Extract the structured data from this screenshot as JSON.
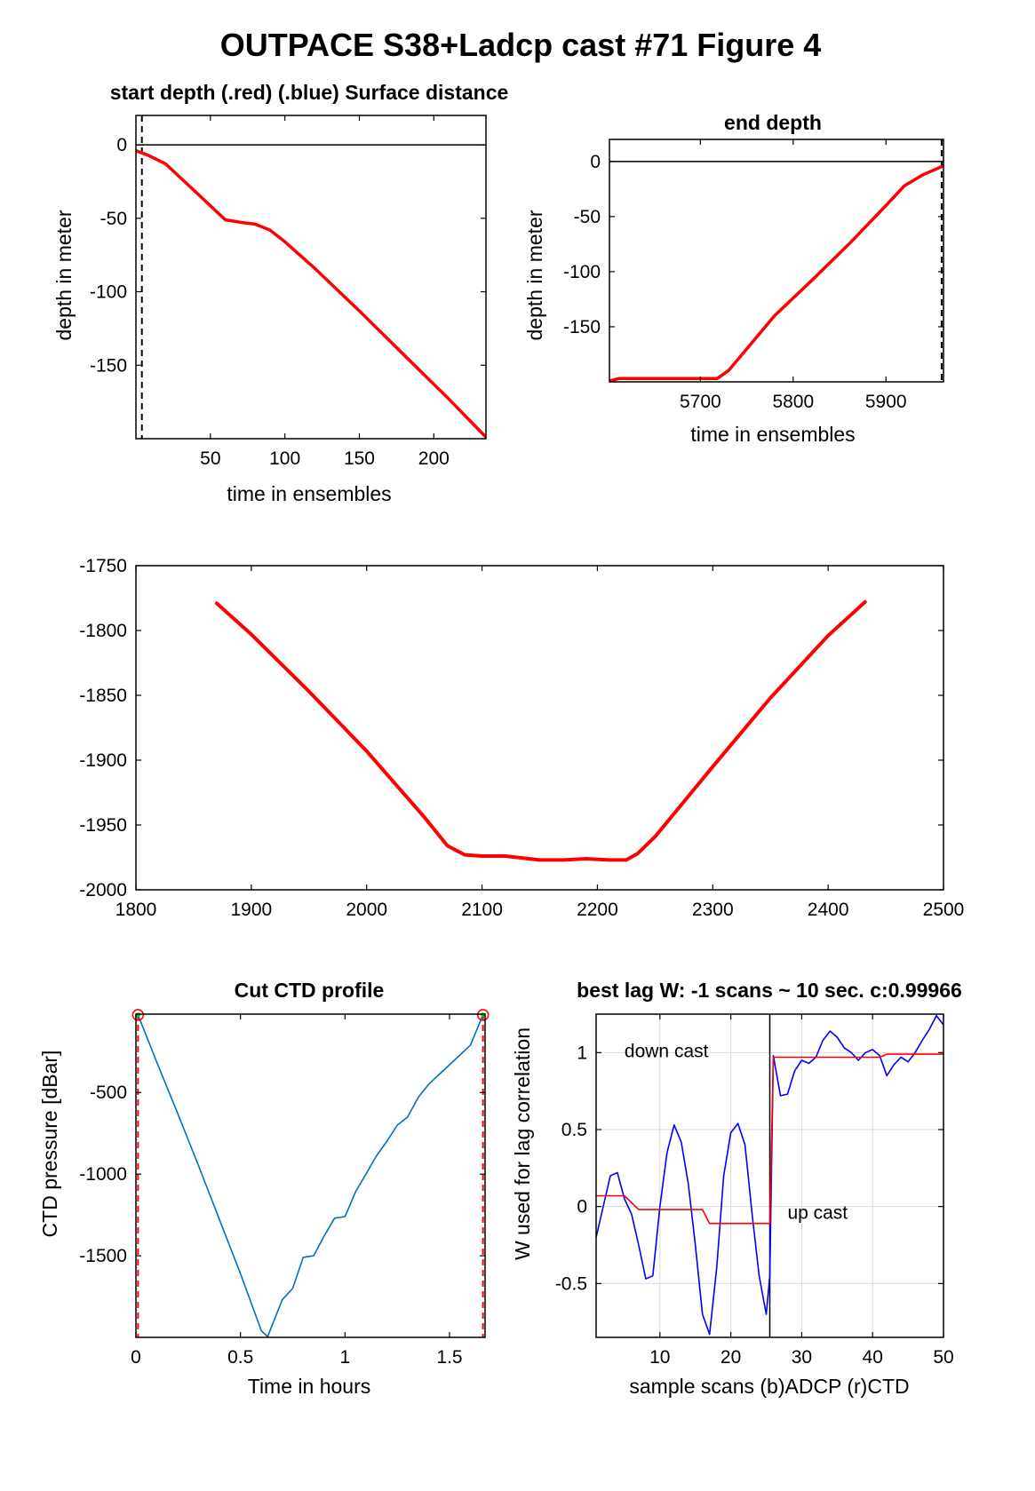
{
  "figure_title": "OUTPACE S38+Ladcp cast #71   Figure 4",
  "colors": {
    "red": "#ff0000",
    "blue": "#0000ff",
    "ctd": "#0072bd",
    "green": "#00cc00",
    "axis": "#000000",
    "grid": "#d9d9d9"
  },
  "chart_data": [
    {
      "type": "line",
      "title": "start depth (.red) (.blue) Surface distance",
      "xlabel": "time in ensembles",
      "ylabel": "depth in meter",
      "xlim": [
        0,
        235
      ],
      "ylim": [
        -200,
        20
      ],
      "xticks": [
        50,
        100,
        150,
        200
      ],
      "yticks": [
        0,
        -50,
        -100,
        -150
      ],
      "reference_line_y": 0,
      "dashed_vline_x": 4,
      "series": [
        {
          "color": "red",
          "x": [
            0,
            8,
            20,
            40,
            60,
            72,
            80,
            90,
            100,
            120,
            150,
            180,
            210,
            235
          ],
          "y": [
            -4,
            -7,
            -13,
            -32,
            -51,
            -53,
            -54,
            -58,
            -66,
            -84,
            -113,
            -143,
            -173,
            -199
          ]
        }
      ]
    },
    {
      "type": "line",
      "title": "end depth",
      "xlabel": "time in ensembles",
      "ylabel": "depth in meter",
      "xlim": [
        5602,
        5962
      ],
      "ylim": [
        -200,
        20
      ],
      "xticks": [
        5700,
        5800,
        5900
      ],
      "yticks": [
        0,
        -50,
        -100,
        -150
      ],
      "reference_line_y": 0,
      "dashed_vline_x": 5960,
      "series": [
        {
          "color": "red",
          "x": [
            5603,
            5612,
            5660,
            5700,
            5718,
            5730,
            5745,
            5780,
            5820,
            5860,
            5900,
            5920,
            5940,
            5962
          ],
          "y": [
            -199,
            -197,
            -197,
            -197,
            -197,
            -190,
            -175,
            -140,
            -108,
            -75,
            -40,
            -22,
            -12,
            -4
          ]
        }
      ]
    },
    {
      "type": "line",
      "title": "",
      "xlabel": "",
      "ylabel": "",
      "xlim": [
        1800,
        2500
      ],
      "ylim": [
        -2000,
        -1750
      ],
      "xticks": [
        1800,
        1900,
        2000,
        2100,
        2200,
        2300,
        2400,
        2500
      ],
      "yticks": [
        -1750,
        -1800,
        -1850,
        -1900,
        -1950,
        -2000
      ],
      "series": [
        {
          "color": "red",
          "x": [
            1870,
            1900,
            1950,
            2000,
            2050,
            2070,
            2085,
            2100,
            2120,
            2150,
            2170,
            2190,
            2210,
            2225,
            2235,
            2250,
            2300,
            2350,
            2400,
            2432
          ],
          "y": [
            -1779,
            -1803,
            -1847,
            -1893,
            -1944,
            -1966,
            -1973,
            -1974,
            -1974,
            -1977,
            -1977,
            -1976,
            -1977,
            -1977,
            -1972,
            -1959,
            -1905,
            -1852,
            -1804,
            -1778
          ]
        }
      ]
    },
    {
      "type": "line",
      "title": "Cut CTD profile",
      "xlabel": "Time in hours",
      "ylabel": "CTD pressure [dBar]",
      "xlim": [
        0,
        1.67
      ],
      "ylim": [
        -2000,
        -20
      ],
      "xticks": [
        0,
        0.5,
        1,
        1.5
      ],
      "yticks": [
        -500,
        -1000,
        -1500
      ],
      "dashed_vlines_x": [
        0.01,
        1.66
      ],
      "endpoints": [
        [
          0.01,
          -25
        ],
        [
          1.66,
          -25
        ]
      ],
      "series": [
        {
          "color": "ctd",
          "x": [
            0.01,
            0.1,
            0.2,
            0.3,
            0.4,
            0.5,
            0.6,
            0.63,
            0.7,
            0.75,
            0.8,
            0.85,
            0.9,
            0.95,
            1.0,
            1.05,
            1.1,
            1.15,
            1.2,
            1.25,
            1.3,
            1.35,
            1.4,
            1.45,
            1.5,
            1.55,
            1.6,
            1.66
          ],
          "y": [
            -25,
            -315,
            -630,
            -950,
            -1280,
            -1610,
            -1960,
            -1995,
            -1770,
            -1700,
            -1510,
            -1500,
            -1380,
            -1270,
            -1260,
            -1110,
            -1000,
            -890,
            -800,
            -700,
            -650,
            -530,
            -450,
            -390,
            -330,
            -270,
            -210,
            -25
          ]
        }
      ]
    },
    {
      "type": "line",
      "title": "best lag W: -1 scans ~ 10 sec.  c:0.99966",
      "xlabel": "sample scans (b)ADCP (r)CTD",
      "ylabel": "W used for lag correlation",
      "xlim": [
        1,
        50
      ],
      "ylim": [
        -0.85,
        1.25
      ],
      "xticks": [
        10,
        20,
        30,
        40,
        50
      ],
      "yticks": [
        1,
        0.5,
        0,
        -0.5
      ],
      "grid": true,
      "vline_x": 25.5,
      "annotations": [
        {
          "text": "down cast",
          "x": 5,
          "y": 0.97
        },
        {
          "text": "up cast",
          "x": 28,
          "y": -0.08
        }
      ],
      "series": [
        {
          "color": "blue",
          "x": [
            1,
            2,
            3,
            4,
            5,
            6,
            7,
            8,
            9,
            10,
            11,
            12,
            13,
            14,
            15,
            16,
            17,
            18,
            19,
            20,
            21,
            22,
            23,
            24,
            25,
            25.5,
            26,
            27,
            28,
            29,
            30,
            31,
            32,
            33,
            34,
            35,
            36,
            37,
            38,
            39,
            40,
            41,
            42,
            43,
            44,
            45,
            46,
            47,
            48,
            49,
            50
          ],
          "y": [
            -0.2,
            0.0,
            0.2,
            0.22,
            0.05,
            -0.05,
            -0.25,
            -0.47,
            -0.45,
            0.0,
            0.35,
            0.53,
            0.42,
            0.15,
            -0.25,
            -0.7,
            -0.83,
            -0.4,
            0.2,
            0.48,
            0.54,
            0.4,
            -0.05,
            -0.45,
            -0.7,
            -0.45,
            0.98,
            0.72,
            0.73,
            0.88,
            0.95,
            0.93,
            0.97,
            1.08,
            1.14,
            1.1,
            1.03,
            1.0,
            0.95,
            1.0,
            1.02,
            0.98,
            0.85,
            0.92,
            0.97,
            0.94,
            1.0,
            1.08,
            1.15,
            1.24,
            1.18
          ]
        },
        {
          "color": "red",
          "x": [
            1,
            5,
            7,
            15,
            16,
            17,
            25,
            25.5,
            26,
            41,
            42,
            50
          ],
          "y": [
            0.07,
            0.07,
            -0.02,
            -0.02,
            -0.02,
            -0.11,
            -0.11,
            -0.11,
            0.97,
            0.97,
            0.99,
            0.99
          ]
        }
      ]
    }
  ]
}
